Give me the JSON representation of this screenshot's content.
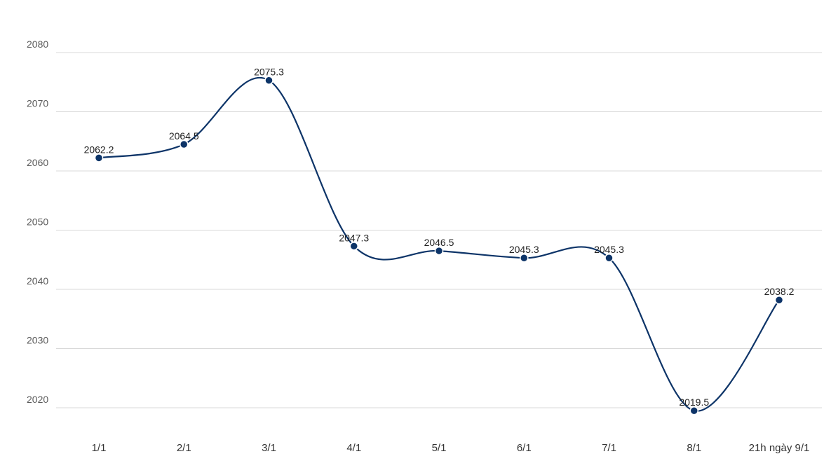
{
  "chart_data": {
    "type": "line",
    "title": "",
    "xlabel": "",
    "ylabel": "",
    "categories": [
      "1/1",
      "2/1",
      "3/1",
      "4/1",
      "5/1",
      "6/1",
      "7/1",
      "8/1",
      "21h ngày 9/1"
    ],
    "series": [
      {
        "values": [
          2062.2,
          2064.5,
          2075.3,
          2047.3,
          2046.5,
          2045.3,
          2045.3,
          2019.5,
          2038.2
        ],
        "labels": [
          "2062.2",
          "2064.5",
          "2075.3",
          "2047.3",
          "2046.5",
          "2045.3",
          "2045.3",
          "2019.5",
          "2038.2"
        ],
        "color": "#0d3468"
      }
    ],
    "yticks": [
      "2020",
      "2030",
      "2040",
      "2050",
      "2060",
      "2070",
      "2080"
    ],
    "ylim": [
      2020,
      2080
    ],
    "grid": true,
    "smooth": true,
    "legend": "none"
  }
}
